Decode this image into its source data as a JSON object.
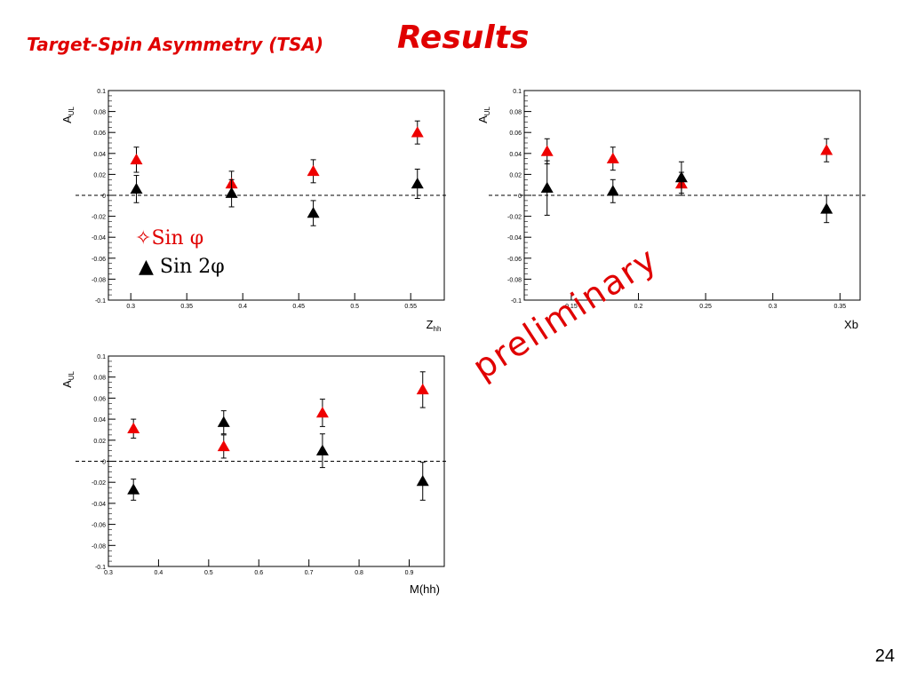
{
  "header": {
    "subtitle": "Target-Spin Asymmetry (TSA)",
    "title": "Results"
  },
  "watermark": "preliminary",
  "page_number": "24",
  "legend": {
    "sin_phi": "Sin φ",
    "sin_2phi": "Sin 2φ",
    "sin_phi_marker": "✧",
    "sin_2phi_marker": "▲"
  },
  "colors": {
    "red_series": "#ee0000",
    "black_series": "#000000",
    "title": "#e00000"
  },
  "chart_data": [
    {
      "type": "scatter",
      "xlabel": "Z_hh",
      "ylabel": "A_UL",
      "xlim": [
        0.28,
        0.58
      ],
      "ylim": [
        -0.1,
        0.1
      ],
      "x_ticks": [
        "0.3",
        "0.35",
        "0.4",
        "0.45",
        "0.5",
        "0.55"
      ],
      "y_ticks": [
        "-0.1",
        "-0.08",
        "-0.06",
        "-0.04",
        "-0.02",
        "0",
        "0.02",
        "0.04",
        "0.06",
        "0.08",
        "0.1"
      ],
      "zero_line": true,
      "series": [
        {
          "name": "Sin φ",
          "color": "#ee0000",
          "points": [
            {
              "x": 0.305,
              "y": 0.034,
              "err": 0.012
            },
            {
              "x": 0.39,
              "y": 0.011,
              "err": 0.012
            },
            {
              "x": 0.463,
              "y": 0.023,
              "err": 0.011
            },
            {
              "x": 0.556,
              "y": 0.06,
              "err": 0.011
            }
          ]
        },
        {
          "name": "Sin 2φ",
          "color": "#000000",
          "points": [
            {
              "x": 0.305,
              "y": 0.006,
              "err": 0.013
            },
            {
              "x": 0.39,
              "y": 0.002,
              "err": 0.013
            },
            {
              "x": 0.463,
              "y": -0.017,
              "err": 0.012
            },
            {
              "x": 0.556,
              "y": 0.011,
              "err": 0.014
            }
          ]
        }
      ]
    },
    {
      "type": "scatter",
      "xlabel": "Xb",
      "ylabel": "A_UL",
      "xlim": [
        0.115,
        0.365
      ],
      "ylim": [
        -0.1,
        0.1
      ],
      "x_ticks": [
        "0.15",
        "0.2",
        "0.25",
        "0.3",
        "0.35"
      ],
      "y_ticks": [
        "-0.1",
        "-0.08",
        "-0.06",
        "-0.04",
        "-0.02",
        "0",
        "0.02",
        "0.04",
        "0.06",
        "0.08",
        "0.1"
      ],
      "zero_line": true,
      "series": [
        {
          "name": "Sin φ",
          "color": "#ee0000",
          "points": [
            {
              "x": 0.132,
              "y": 0.042,
              "err": 0.012
            },
            {
              "x": 0.181,
              "y": 0.035,
              "err": 0.011
            },
            {
              "x": 0.232,
              "y": 0.011,
              "err": 0.011
            },
            {
              "x": 0.34,
              "y": 0.043,
              "err": 0.011
            }
          ]
        },
        {
          "name": "Sin 2φ",
          "color": "#000000",
          "points": [
            {
              "x": 0.132,
              "y": 0.007,
              "err": 0.026
            },
            {
              "x": 0.181,
              "y": 0.004,
              "err": 0.011
            },
            {
              "x": 0.232,
              "y": 0.017,
              "err": 0.015
            },
            {
              "x": 0.34,
              "y": -0.013,
              "err": 0.013
            }
          ]
        }
      ]
    },
    {
      "type": "scatter",
      "xlabel": "M(hh)",
      "ylabel": "A_UL",
      "xlim": [
        0.3,
        0.97
      ],
      "ylim": [
        -0.1,
        0.1
      ],
      "x_ticks": [
        "0.3",
        "0.4",
        "0.5",
        "0.6",
        "0.7",
        "0.8",
        "0.9"
      ],
      "y_ticks": [
        "-0.1",
        "-0.08",
        "-0.06",
        "-0.04",
        "-0.02",
        "0",
        "0.02",
        "0.04",
        "0.06",
        "0.08",
        "0.1"
      ],
      "zero_line": true,
      "series": [
        {
          "name": "Sin φ",
          "color": "#ee0000",
          "points": [
            {
              "x": 0.35,
              "y": 0.031,
              "err": 0.009
            },
            {
              "x": 0.53,
              "y": 0.014,
              "err": 0.011
            },
            {
              "x": 0.727,
              "y": 0.046,
              "err": 0.013
            },
            {
              "x": 0.927,
              "y": 0.068,
              "err": 0.017
            }
          ]
        },
        {
          "name": "Sin 2φ",
          "color": "#000000",
          "points": [
            {
              "x": 0.35,
              "y": -0.027,
              "err": 0.01
            },
            {
              "x": 0.53,
              "y": 0.037,
              "err": 0.011
            },
            {
              "x": 0.727,
              "y": 0.01,
              "err": 0.016
            },
            {
              "x": 0.927,
              "y": -0.019,
              "err": 0.018
            }
          ]
        }
      ]
    }
  ]
}
